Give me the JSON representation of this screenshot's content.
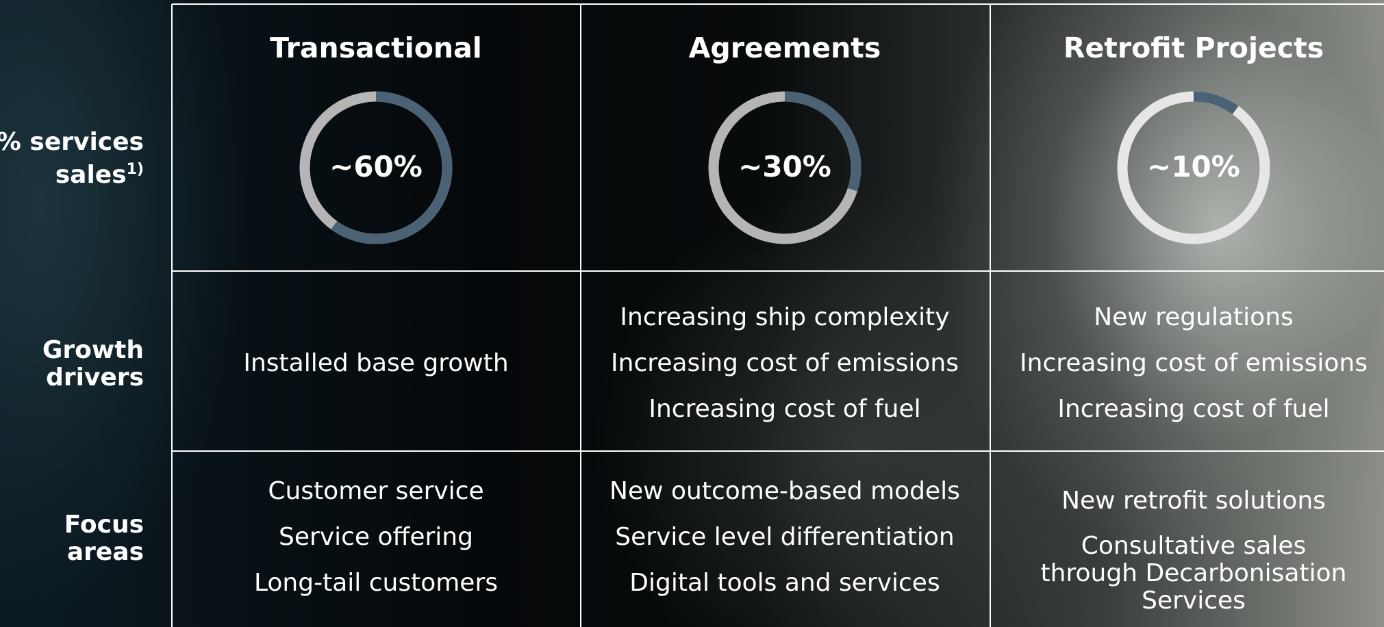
{
  "row_labels": [
    {
      "text": "% services sales",
      "footnote": "1)"
    },
    {
      "text": "Growth drivers"
    },
    {
      "text": "Focus areas"
    }
  ],
  "columns": [
    {
      "title": "Transactional",
      "share": 60,
      "share_label": "~60%",
      "drivers": [
        "Installed base growth"
      ],
      "focus": [
        "Customer service",
        "Service offering",
        "Long-tail customers"
      ]
    },
    {
      "title": "Agreements",
      "share": 30,
      "share_label": "~30%",
      "drivers": [
        "Increasing ship complexity",
        "Increasing cost of emissions",
        "Increasing cost of fuel"
      ],
      "focus": [
        "New outcome-based models",
        "Service level differentiation",
        "Digital tools and services"
      ]
    },
    {
      "title": "Retrofit Projects",
      "share": 10,
      "share_label": "~10%",
      "drivers": [
        "New regulations",
        "Increasing cost of emissions",
        "Increasing cost of fuel"
      ],
      "focus": [
        "New retrofit solutions",
        "Consultative sales through Decarbonisation Services"
      ]
    }
  ]
}
